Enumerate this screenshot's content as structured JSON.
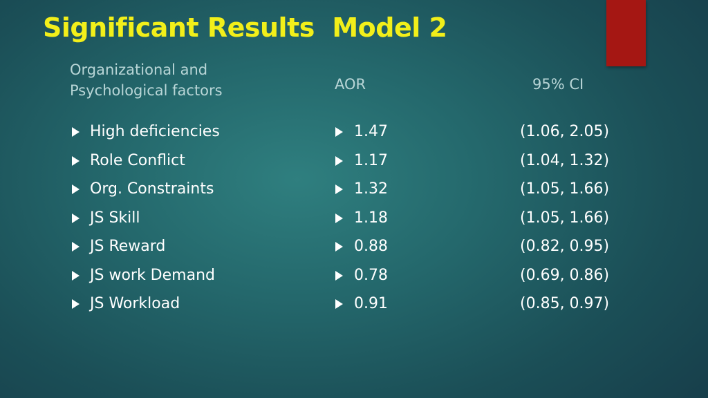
{
  "colors": {
    "title": "#f2ef1a",
    "header_text": "#b9d6d7",
    "body_text": "#ffffff",
    "accent_tab": "#a51713"
  },
  "slide": {
    "title": "Significant Results  Model 2",
    "headers": {
      "factors": "Organizational and Psychological factors",
      "aor": "AOR",
      "ci": "95% CI"
    },
    "bullet_icon": "right-triangle-bullet",
    "rows": [
      {
        "factor": "High deficiencies",
        "aor": "1.47",
        "ci": "(1.06, 2.05)"
      },
      {
        "factor": "Role Conflict",
        "aor": "1.17",
        "ci": "(1.04, 1.32)"
      },
      {
        "factor": "Org. Constraints",
        "aor": "1.32",
        "ci": "(1.05, 1.66)"
      },
      {
        "factor": "JS Skill",
        "aor": "1.18",
        "ci": "(1.05, 1.66)"
      },
      {
        "factor": "JS Reward",
        "aor": "0.88",
        "ci": "(0.82, 0.95)"
      },
      {
        "factor": "JS work Demand",
        "aor": "0.78",
        "ci": "(0.69, 0.86)"
      },
      {
        "factor": "JS Workload",
        "aor": "0.91",
        "ci": "(0.85, 0.97)"
      }
    ]
  }
}
